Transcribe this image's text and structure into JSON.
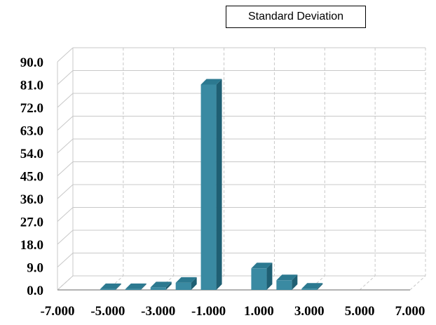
{
  "chart_data": {
    "type": "bar",
    "title": "",
    "xlabel": "",
    "ylabel": "",
    "legend": {
      "label": "Standard Deviation",
      "placement": "top-right"
    },
    "x_ticks": [
      "-7.000",
      "-5.000",
      "-3.000",
      "-1.000",
      "1.000",
      "3.000",
      "5.000",
      "7.000"
    ],
    "y_ticks": [
      "0.0",
      "9.0",
      "18.0",
      "27.0",
      "36.0",
      "45.0",
      "54.0",
      "63.0",
      "72.0",
      "81.0",
      "90.0"
    ],
    "xlim": [
      -7,
      7
    ],
    "ylim": [
      0,
      90
    ],
    "grid": true,
    "bar_color": "#3a8aa2",
    "series": [
      {
        "name": "Standard Deviation",
        "points": [
          {
            "x": -5.0,
            "y": 0.3
          },
          {
            "x": -4.0,
            "y": 0.3
          },
          {
            "x": -3.0,
            "y": 1.0
          },
          {
            "x": -2.0,
            "y": 2.8
          },
          {
            "x": -1.0,
            "y": 81.0
          },
          {
            "x": 1.0,
            "y": 8.5
          },
          {
            "x": 2.0,
            "y": 3.8
          },
          {
            "x": 3.0,
            "y": 0.5
          }
        ]
      }
    ]
  }
}
